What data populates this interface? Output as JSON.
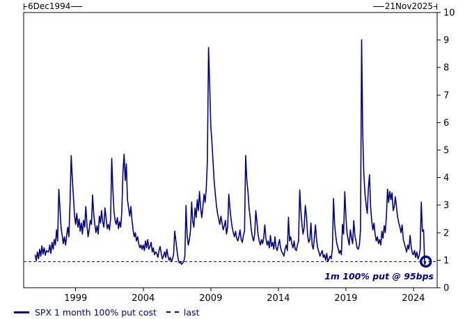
{
  "header": {
    "date_start": "6Dec1994",
    "date_end": "21Nov2025"
  },
  "legend": {
    "items": [
      {
        "label": "SPX 1 month 100% put cost",
        "swatch": "solid-line",
        "color": "#000082"
      },
      {
        "label": "last",
        "swatch": "dashed-line",
        "color": "#000082"
      }
    ]
  },
  "annotation": {
    "text": "1m 100% put @ 95bps",
    "color": "#000082"
  },
  "chart_data": {
    "type": "line",
    "title": "",
    "xlabel": "",
    "ylabel": "",
    "ylim": [
      0,
      10
    ],
    "y_ticks": [
      0,
      1,
      2,
      3,
      4,
      5,
      6,
      7,
      8,
      9,
      10
    ],
    "y_axis_side": "right",
    "x_ticks_years": [
      1999,
      2004,
      2009,
      2014,
      2019,
      2024
    ],
    "grid": false,
    "date_range": {
      "start": "6Dec1994",
      "end": "21Nov2025"
    },
    "reference_line": {
      "name": "last",
      "value": 0.95,
      "style": "dashed",
      "color": "#000082"
    },
    "end_marker": {
      "shape": "circle",
      "at": "last-point",
      "value": 0.95,
      "color": "#000082"
    },
    "series": [
      {
        "name": "SPX 1 month 100% put cost",
        "color": "#000082",
        "frequency": "monthly",
        "start_year": 1996,
        "start_month": 1,
        "last_value": 0.95,
        "values_by_year": [
          [
            1.2,
            0.98,
            1.3,
            1.05,
            1.4,
            1.15,
            1.52,
            1.22,
            1.45,
            1.18,
            1.35,
            1.3
          ],
          [
            1.3,
            1.55,
            1.25,
            1.65,
            1.4,
            1.75,
            1.55,
            2.1,
            1.7,
            3.58,
            2.9,
            2.2
          ],
          [
            1.9,
            1.6,
            1.85,
            1.55,
            1.9,
            2.2,
            1.85,
            3.1,
            4.8,
            3.95,
            3.3,
            2.6
          ],
          [
            2.3,
            2.7,
            2.2,
            2.5,
            2.05,
            2.35,
            1.95,
            2.45,
            2.2,
            2.95,
            2.3,
            1.85
          ],
          [
            2.1,
            2.45,
            2.3,
            3.37,
            2.7,
            2.3,
            2.0,
            2.25,
            1.95,
            2.6,
            2.35,
            2.8
          ],
          [
            2.4,
            2.2,
            2.9,
            2.55,
            2.15,
            2.3,
            2.1,
            2.5,
            4.7,
            3.6,
            2.8,
            2.45
          ],
          [
            2.3,
            2.55,
            2.15,
            2.4,
            2.2,
            2.75,
            4.2,
            4.85,
            3.9,
            4.5,
            3.2,
            2.9
          ],
          [
            2.6,
            2.95,
            2.45,
            2.1,
            1.85,
            2.0,
            1.7,
            1.85,
            1.6,
            1.45,
            1.55,
            1.4
          ],
          [
            1.55,
            1.35,
            1.7,
            1.45,
            1.75,
            1.4,
            1.5,
            1.65,
            1.3,
            1.45,
            1.2,
            1.3
          ],
          [
            1.25,
            1.1,
            1.35,
            1.5,
            1.25,
            1.05,
            1.15,
            1.3,
            1.1,
            1.4,
            1.15,
            1.0
          ],
          [
            1.1,
            0.95,
            1.05,
            1.2,
            2.06,
            1.7,
            1.35,
            1.05,
            0.9,
            0.95,
            0.85,
            0.9
          ],
          [
            0.95,
            1.15,
            2.99,
            1.9,
            1.55,
            1.75,
            2.1,
            3.11,
            2.4,
            2.2,
            2.9,
            2.55
          ],
          [
            3.2,
            2.8,
            3.5,
            2.9,
            2.55,
            2.95,
            3.4,
            3.1,
            3.6,
            4.6,
            8.73,
            7.4
          ],
          [
            5.9,
            5.3,
            4.6,
            3.9,
            3.4,
            3.0,
            2.7,
            2.5,
            2.3,
            2.6,
            2.35,
            2.1
          ],
          [
            2.25,
            2.45,
            1.95,
            2.2,
            3.4,
            2.9,
            2.5,
            2.2,
            2.0,
            1.85,
            2.05,
            1.8
          ],
          [
            1.7,
            1.85,
            2.1,
            1.75,
            1.65,
            1.9,
            2.05,
            4.8,
            3.9,
            3.5,
            2.9,
            2.55
          ],
          [
            2.1,
            1.85,
            1.7,
            1.95,
            2.8,
            2.4,
            1.95,
            1.7,
            1.55,
            1.75,
            1.6,
            1.8
          ],
          [
            2.28,
            1.8,
            1.55,
            1.7,
            1.45,
            1.9,
            1.5,
            1.65,
            1.4,
            1.85,
            1.45,
            1.35
          ],
          [
            1.55,
            1.75,
            1.45,
            1.3,
            1.25,
            1.15,
            1.4,
            1.55,
            1.35,
            2.56,
            1.7,
            1.85
          ],
          [
            1.6,
            1.45,
            1.7,
            1.4,
            1.35,
            1.55,
            1.7,
            3.55,
            2.8,
            2.3,
            1.95,
            2.2
          ],
          [
            2.99,
            2.6,
            1.9,
            1.65,
            1.75,
            2.35,
            1.55,
            1.4,
            1.8,
            2.28,
            1.75,
            1.45
          ],
          [
            1.3,
            1.15,
            1.25,
            1.35,
            1.1,
            1.2,
            1.0,
            1.25,
            0.95,
            1.05,
            1.15,
            1.05
          ],
          [
            1.4,
            3.24,
            2.3,
            1.9,
            1.6,
            1.45,
            1.25,
            1.35,
            1.2,
            2.3,
            1.95,
            3.49
          ],
          [
            2.6,
            2.0,
            1.75,
            1.55,
            2.1,
            1.8,
            1.6,
            2.44,
            1.9,
            1.7,
            1.45,
            1.4
          ],
          [
            1.55,
            2.1,
            9.01,
            5.6,
            4.13,
            3.4,
            3.0,
            2.7,
            3.62,
            4.1,
            2.9,
            2.4
          ],
          [
            2.1,
            2.35,
            1.95,
            1.7,
            1.85,
            1.6,
            1.75,
            1.55,
            2.05,
            1.8,
            2.25,
            2.0
          ],
          [
            2.6,
            3.58,
            3.1,
            3.5,
            3.2,
            3.45,
            2.8,
            2.95,
            3.3,
            2.9,
            2.55,
            2.35
          ],
          [
            2.2,
            2.0,
            2.28,
            1.75,
            1.6,
            1.45,
            1.3,
            1.55,
            1.4,
            1.9,
            1.5,
            1.25
          ],
          [
            1.2,
            1.35,
            1.1,
            1.3,
            1.05,
            1.15,
            1.4,
            3.11,
            2.05,
            2.1,
            0.85,
            0.95
          ]
        ]
      }
    ]
  }
}
